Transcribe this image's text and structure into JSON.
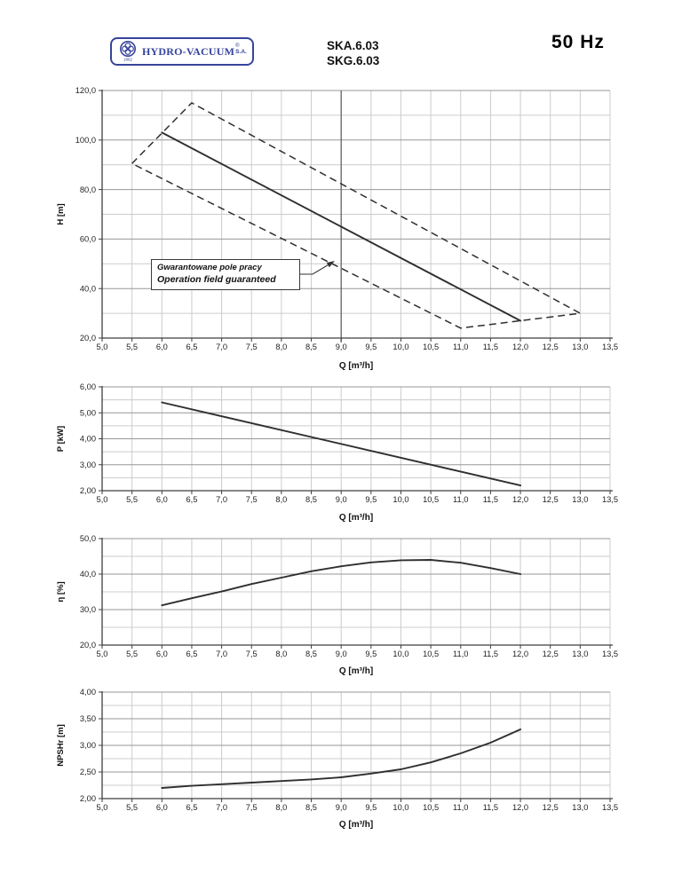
{
  "header": {
    "logo": {
      "name": "HYDRO-VACUUM",
      "registered": "®",
      "suffix": "S.A.",
      "year": "1862"
    },
    "models": {
      "line1": "SKA.6.03",
      "line2": "SKG.6.03"
    },
    "frequency": "50 Hz"
  },
  "colors": {
    "logo_blue": "#36449b",
    "curve": "#2f2f2f",
    "grid_minor": "#cccccc",
    "grid_major": "#979797",
    "axis": "#3f3f3f",
    "marker_line": "#5a5a5a",
    "text": "#1f1f1f"
  },
  "x_axis": {
    "label": "Q [m³/h]",
    "min": 5.0,
    "max": 13.5,
    "step": 0.5,
    "tick_labels": [
      "5,0",
      "5,5",
      "6,0",
      "6,5",
      "7,0",
      "7,5",
      "8,0",
      "8,5",
      "9,0",
      "9,5",
      "10,0",
      "10,5",
      "11,0",
      "11,5",
      "12,0",
      "12,5",
      "13,0",
      "13,5"
    ]
  },
  "chart_data": [
    {
      "type": "line",
      "name": "head-flow-curve",
      "ylabel": "H [m]",
      "ylim": [
        20,
        120
      ],
      "y_label_step": 20,
      "y_grid_step": 10,
      "y_tick_labels": [
        "20,0",
        "40,0",
        "60,0",
        "80,0",
        "100,0",
        "120,0"
      ],
      "marker_x": 9.0,
      "series": [
        {
          "name": "H(Q)",
          "style": "solid",
          "points": [
            [
              6.0,
              103
            ],
            [
              12.0,
              27
            ]
          ]
        },
        {
          "name": "operation-field-boundary",
          "style": "dashed",
          "closed": true,
          "points": [
            [
              5.5,
              90.5
            ],
            [
              6.5,
              115
            ],
            [
              13.0,
              30
            ],
            [
              11.0,
              24
            ]
          ]
        }
      ],
      "annotation": {
        "line1": "Gwarantowane pole pracy",
        "line2": "Operation field guaranteed"
      }
    },
    {
      "type": "line",
      "name": "power-flow-curve",
      "ylabel": "P [kW]",
      "ylim": [
        2,
        6
      ],
      "y_label_step": 1,
      "y_grid_step": 0.5,
      "y_tick_labels": [
        "2,00",
        "3,00",
        "4,00",
        "5,00",
        "6,00"
      ],
      "series": [
        {
          "name": "P(Q)",
          "style": "solid",
          "points": [
            [
              6.0,
              5.4
            ],
            [
              12.0,
              2.2
            ]
          ]
        }
      ]
    },
    {
      "type": "line",
      "name": "efficiency-flow-curve",
      "ylabel": "η [%]",
      "ylim": [
        20,
        50
      ],
      "y_label_step": 10,
      "y_grid_step": 5,
      "y_tick_labels": [
        "20,0",
        "30,0",
        "40,0",
        "50,0"
      ],
      "series": [
        {
          "name": "η(Q)",
          "style": "solid",
          "points": [
            [
              6.0,
              31.2
            ],
            [
              6.5,
              33.2
            ],
            [
              7.0,
              35.1
            ],
            [
              7.5,
              37.2
            ],
            [
              8.0,
              39.0
            ],
            [
              8.5,
              40.8
            ],
            [
              9.0,
              42.2
            ],
            [
              9.5,
              43.3
            ],
            [
              10.0,
              43.9
            ],
            [
              10.5,
              44.0
            ],
            [
              11.0,
              43.2
            ],
            [
              11.5,
              41.7
            ],
            [
              12.0,
              40.0
            ]
          ]
        }
      ]
    },
    {
      "type": "line",
      "name": "npshr-flow-curve",
      "ylabel": "NPSHr [m]",
      "ylim": [
        2,
        4
      ],
      "y_label_step": 0.5,
      "y_grid_step": 0.25,
      "y_tick_labels": [
        "2,00",
        "2,50",
        "3,00",
        "3,50",
        "4,00"
      ],
      "series": [
        {
          "name": "NPSHr(Q)",
          "style": "solid",
          "points": [
            [
              6.0,
              2.2
            ],
            [
              6.5,
              2.24
            ],
            [
              7.0,
              2.27
            ],
            [
              7.5,
              2.3
            ],
            [
              8.0,
              2.33
            ],
            [
              8.5,
              2.36
            ],
            [
              9.0,
              2.4
            ],
            [
              9.5,
              2.47
            ],
            [
              10.0,
              2.55
            ],
            [
              10.5,
              2.68
            ],
            [
              11.0,
              2.85
            ],
            [
              11.5,
              3.05
            ],
            [
              12.0,
              3.3
            ]
          ]
        }
      ]
    }
  ]
}
